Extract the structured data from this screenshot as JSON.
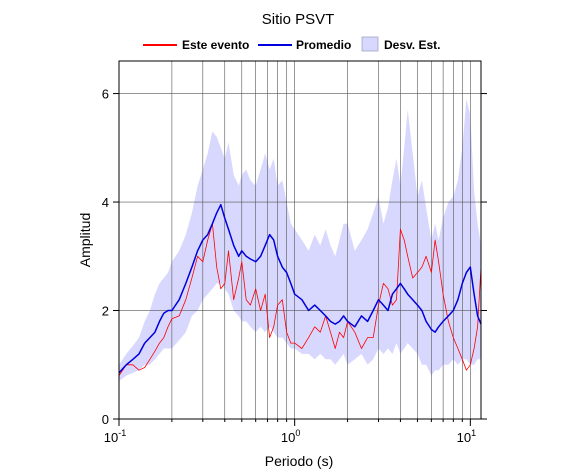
{
  "chart_data": {
    "type": "line",
    "title": "Sitio PSVT",
    "xlabel": "Periodo (s)",
    "ylabel": "Amplitud",
    "x_scale": "log",
    "xlim": [
      0.1,
      11.5
    ],
    "ylim": [
      0,
      6.6
    ],
    "y_ticks": [
      {
        "value": 0,
        "label": "0"
      },
      {
        "value": 2,
        "label": "2"
      },
      {
        "value": 4,
        "label": "4"
      },
      {
        "value": 6,
        "label": "6"
      }
    ],
    "x_ticks": [
      {
        "value": 0.1,
        "base": "10",
        "exp": "-1"
      },
      {
        "value": 1,
        "base": "10",
        "exp": "0"
      },
      {
        "value": 10,
        "base": "10",
        "exp": "1"
      }
    ],
    "grid": true,
    "legend_position": "top",
    "legend": [
      {
        "label": "Este evento",
        "kind": "line",
        "color": "#ff0000"
      },
      {
        "label": "Promedio",
        "kind": "line",
        "color": "#0000dd"
      },
      {
        "label": "Desv. Est.",
        "kind": "band",
        "color": "#d8d8ff"
      }
    ],
    "series": [
      {
        "name": "Este evento",
        "color": "#ff0000",
        "x": [
          0.1,
          0.11,
          0.12,
          0.13,
          0.14,
          0.15,
          0.16,
          0.17,
          0.18,
          0.19,
          0.2,
          0.22,
          0.24,
          0.26,
          0.28,
          0.3,
          0.32,
          0.34,
          0.36,
          0.38,
          0.4,
          0.42,
          0.45,
          0.48,
          0.5,
          0.53,
          0.56,
          0.6,
          0.64,
          0.68,
          0.72,
          0.76,
          0.8,
          0.85,
          0.9,
          0.95,
          1.0,
          1.1,
          1.2,
          1.3,
          1.4,
          1.5,
          1.6,
          1.7,
          1.8,
          1.9,
          2.0,
          2.2,
          2.4,
          2.6,
          2.8,
          3.0,
          3.2,
          3.4,
          3.6,
          3.8,
          4.0,
          4.2,
          4.4,
          4.7,
          5.0,
          5.3,
          5.6,
          6.0,
          6.3,
          6.6,
          7.0,
          7.5,
          8.0,
          8.5,
          9.0,
          9.5,
          10.0,
          10.5,
          11.0,
          11.5
        ],
        "values": [
          0.8,
          1.0,
          1.0,
          0.9,
          0.95,
          1.1,
          1.25,
          1.4,
          1.5,
          1.7,
          1.85,
          1.9,
          2.2,
          2.6,
          3.0,
          2.9,
          3.3,
          3.6,
          2.8,
          2.4,
          2.5,
          3.1,
          2.2,
          2.6,
          2.9,
          2.2,
          2.1,
          2.4,
          2.0,
          2.3,
          1.5,
          1.7,
          2.1,
          2.2,
          1.6,
          1.4,
          1.4,
          1.3,
          1.5,
          1.7,
          1.6,
          1.9,
          1.6,
          1.3,
          1.6,
          1.5,
          1.8,
          1.6,
          1.3,
          1.5,
          1.5,
          2.1,
          2.5,
          2.4,
          2.1,
          2.2,
          3.5,
          3.3,
          3.0,
          2.6,
          2.7,
          2.8,
          3.0,
          2.7,
          3.3,
          2.9,
          2.3,
          1.8,
          1.5,
          1.3,
          1.1,
          0.9,
          1.0,
          1.3,
          1.7,
          2.8
        ]
      },
      {
        "name": "Promedio",
        "color": "#0000dd",
        "x": [
          0.1,
          0.11,
          0.12,
          0.13,
          0.14,
          0.15,
          0.16,
          0.17,
          0.18,
          0.19,
          0.2,
          0.22,
          0.24,
          0.26,
          0.28,
          0.3,
          0.32,
          0.34,
          0.36,
          0.38,
          0.4,
          0.42,
          0.45,
          0.48,
          0.5,
          0.53,
          0.56,
          0.6,
          0.64,
          0.68,
          0.72,
          0.76,
          0.8,
          0.85,
          0.9,
          0.95,
          1.0,
          1.1,
          1.2,
          1.3,
          1.4,
          1.5,
          1.6,
          1.7,
          1.8,
          1.9,
          2.0,
          2.2,
          2.4,
          2.6,
          2.8,
          3.0,
          3.2,
          3.4,
          3.6,
          3.8,
          4.0,
          4.2,
          4.4,
          4.7,
          5.0,
          5.3,
          5.6,
          6.0,
          6.3,
          6.6,
          7.0,
          7.5,
          8.0,
          8.5,
          9.0,
          9.5,
          10.0,
          10.5,
          11.0,
          11.5
        ],
        "values": [
          0.85,
          1.0,
          1.1,
          1.2,
          1.4,
          1.5,
          1.6,
          1.8,
          1.95,
          2.0,
          2.0,
          2.2,
          2.5,
          2.8,
          3.1,
          3.3,
          3.4,
          3.6,
          3.8,
          3.95,
          3.7,
          3.5,
          3.2,
          3.0,
          3.1,
          3.0,
          2.95,
          2.9,
          3.0,
          3.2,
          3.4,
          3.3,
          3.0,
          2.8,
          2.7,
          2.5,
          2.3,
          2.2,
          2.0,
          2.1,
          2.0,
          1.9,
          1.8,
          1.75,
          1.8,
          1.9,
          1.8,
          1.7,
          1.9,
          1.8,
          2.0,
          2.2,
          2.1,
          2.0,
          2.3,
          2.4,
          2.5,
          2.4,
          2.3,
          2.2,
          2.1,
          2.0,
          1.8,
          1.65,
          1.6,
          1.7,
          1.8,
          1.9,
          2.0,
          2.2,
          2.5,
          2.7,
          2.8,
          2.3,
          1.9,
          1.75
        ]
      }
    ],
    "band": {
      "name": "Desv. Est.",
      "color": "#d8d8ff",
      "x": [
        0.1,
        0.11,
        0.12,
        0.13,
        0.14,
        0.15,
        0.16,
        0.17,
        0.18,
        0.19,
        0.2,
        0.22,
        0.24,
        0.26,
        0.28,
        0.3,
        0.32,
        0.34,
        0.36,
        0.38,
        0.4,
        0.42,
        0.45,
        0.48,
        0.5,
        0.53,
        0.56,
        0.6,
        0.64,
        0.68,
        0.72,
        0.76,
        0.8,
        0.85,
        0.9,
        0.95,
        1.0,
        1.1,
        1.2,
        1.3,
        1.4,
        1.5,
        1.6,
        1.7,
        1.8,
        1.9,
        2.0,
        2.2,
        2.4,
        2.6,
        2.8,
        3.0,
        3.2,
        3.4,
        3.6,
        3.8,
        4.0,
        4.2,
        4.4,
        4.7,
        5.0,
        5.3,
        5.6,
        6.0,
        6.3,
        6.6,
        7.0,
        7.5,
        8.0,
        8.5,
        9.0,
        9.5,
        10.0,
        10.5,
        11.0,
        11.5
      ],
      "upper": [
        1.0,
        1.2,
        1.35,
        1.5,
        1.8,
        2.0,
        2.3,
        2.5,
        2.6,
        2.7,
        2.9,
        3.1,
        3.4,
        3.8,
        4.3,
        4.6,
        4.9,
        5.3,
        5.2,
        5.0,
        4.8,
        5.1,
        4.5,
        4.3,
        4.5,
        4.6,
        4.4,
        4.3,
        4.6,
        4.9,
        4.6,
        4.8,
        4.3,
        4.4,
        4.0,
        3.6,
        3.5,
        3.3,
        3.1,
        3.4,
        3.2,
        3.5,
        3.2,
        3.0,
        3.3,
        3.6,
        3.6,
        3.1,
        3.3,
        3.5,
        3.8,
        4.1,
        3.6,
        3.9,
        4.4,
        4.8,
        4.3,
        5.0,
        5.7,
        4.9,
        4.1,
        4.4,
        3.9,
        3.3,
        3.6,
        3.3,
        3.7,
        4.0,
        4.1,
        4.4,
        5.0,
        5.9,
        5.6,
        4.2,
        3.6,
        3.2
      ],
      "lower": [
        0.7,
        0.8,
        0.85,
        0.9,
        1.0,
        1.0,
        1.1,
        1.2,
        1.3,
        1.3,
        1.3,
        1.45,
        1.6,
        1.9,
        2.0,
        2.2,
        2.3,
        2.4,
        2.5,
        2.5,
        2.4,
        2.3,
        2.0,
        1.9,
        1.8,
        1.8,
        1.7,
        1.6,
        1.7,
        1.6,
        1.7,
        1.6,
        1.5,
        1.5,
        1.4,
        1.3,
        1.3,
        1.2,
        1.2,
        1.1,
        1.2,
        1.1,
        1.1,
        1.0,
        1.1,
        1.2,
        1.0,
        1.1,
        1.2,
        1.0,
        1.1,
        1.3,
        1.2,
        1.3,
        1.2,
        1.4,
        1.2,
        1.3,
        1.4,
        1.3,
        1.2,
        1.0,
        1.0,
        0.8,
        0.9,
        0.9,
        1.0,
        1.0,
        1.1,
        1.0,
        1.1,
        1.1,
        1.0,
        1.0,
        1.1,
        1.1
      ]
    }
  }
}
